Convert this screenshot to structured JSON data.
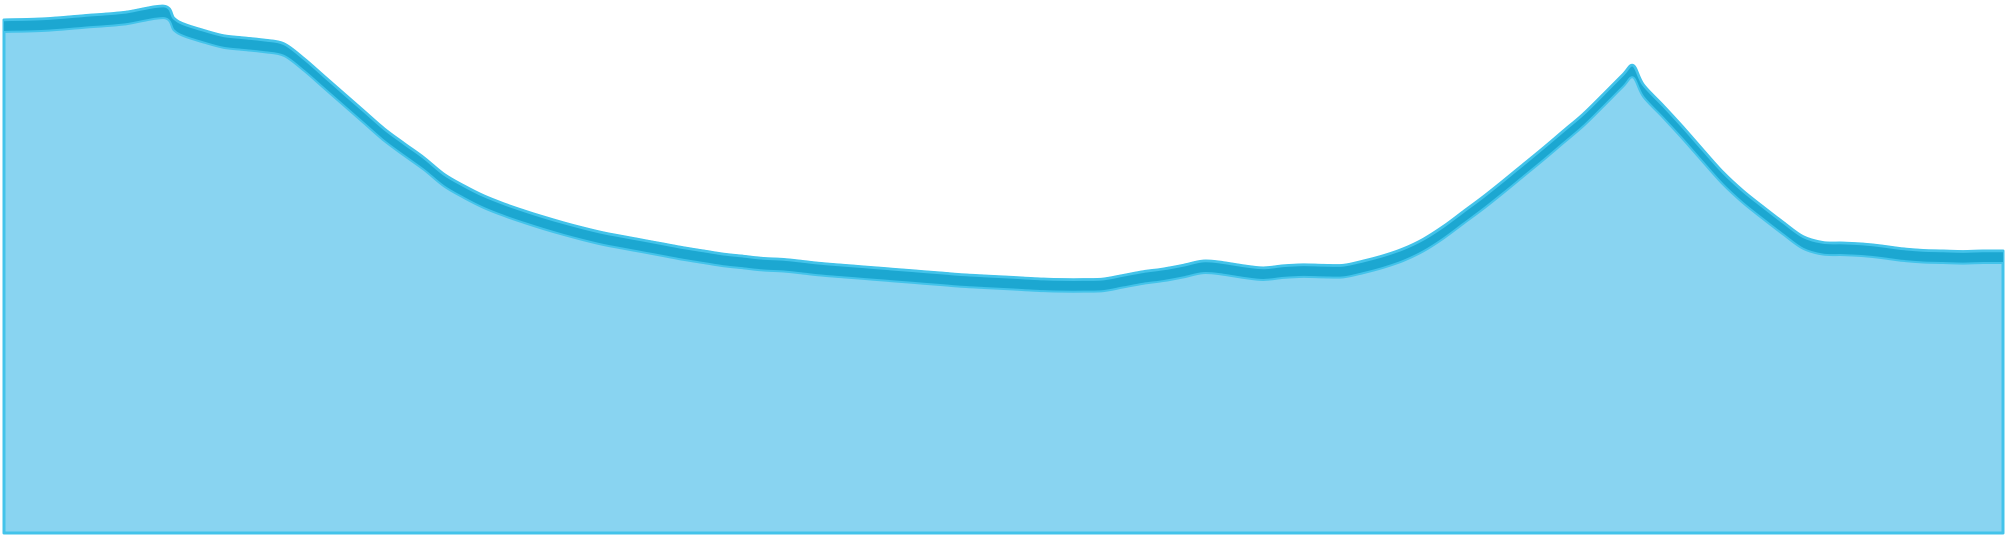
{
  "chart_data": {
    "type": "area",
    "title": "",
    "xlabel": "",
    "ylabel": "",
    "grid": false,
    "legend": "none",
    "xlim": [
      0,
      100
    ],
    "ylim": [
      0,
      100
    ],
    "series": [
      {
        "x": [
          0,
          2,
          4,
          6,
          8,
          8.5,
          9,
          10,
          11,
          12,
          13,
          14,
          15,
          16,
          17,
          18,
          19,
          20,
          21,
          22,
          23,
          24,
          25,
          26,
          27,
          28,
          29,
          30,
          31,
          32,
          33,
          34,
          35,
          36,
          37,
          38,
          39,
          40,
          41,
          42,
          43,
          44,
          45,
          46,
          47,
          48,
          49,
          50,
          51,
          52,
          53,
          54,
          55,
          56,
          57,
          58,
          59,
          60,
          61,
          62,
          63,
          64,
          65,
          66,
          67,
          68,
          69,
          70,
          71,
          72,
          73,
          74,
          75,
          76,
          77,
          78,
          79,
          80,
          81,
          81.5,
          82,
          83,
          84,
          85,
          86,
          87,
          88,
          89,
          90,
          91,
          92,
          93,
          94,
          95,
          96,
          97,
          98,
          99,
          100
        ],
        "y": [
          96.8,
          97.0,
          97.6,
          98.2,
          99.4,
          97.1,
          96.0,
          94.8,
          93.8,
          93.4,
          93.0,
          92.3,
          89.5,
          86.2,
          82.9,
          79.6,
          76.3,
          73.5,
          70.8,
          67.7,
          65.5,
          63.6,
          62.1,
          60.8,
          59.6,
          58.5,
          57.5,
          56.6,
          55.9,
          55.2,
          54.5,
          53.8,
          53.2,
          52.6,
          52.2,
          51.8,
          51.6,
          51.2,
          50.8,
          50.5,
          50.2,
          49.9,
          49.6,
          49.3,
          49.0,
          48.7,
          48.5,
          48.3,
          48.1,
          47.9,
          47.8,
          47.8,
          47.9,
          48.6,
          49.3,
          49.8,
          50.5,
          51.3,
          51.0,
          50.4,
          50.0,
          50.4,
          50.6,
          50.5,
          50.5,
          51.3,
          52.3,
          53.6,
          55.4,
          57.8,
          60.6,
          63.4,
          66.4,
          69.5,
          72.6,
          75.8,
          79.0,
          82.7,
          86.5,
          88.2,
          84.6,
          80.6,
          76.5,
          72.2,
          68.0,
          64.5,
          61.5,
          58.6,
          55.9,
          54.8,
          54.7,
          54.5,
          54.1,
          53.6,
          53.3,
          53.2,
          53.1,
          53.2,
          53.2
        ]
      }
    ],
    "colors": {
      "fill": "#89d4f1",
      "band": "#1ca7d1",
      "outline": "#43c3ea"
    }
  }
}
